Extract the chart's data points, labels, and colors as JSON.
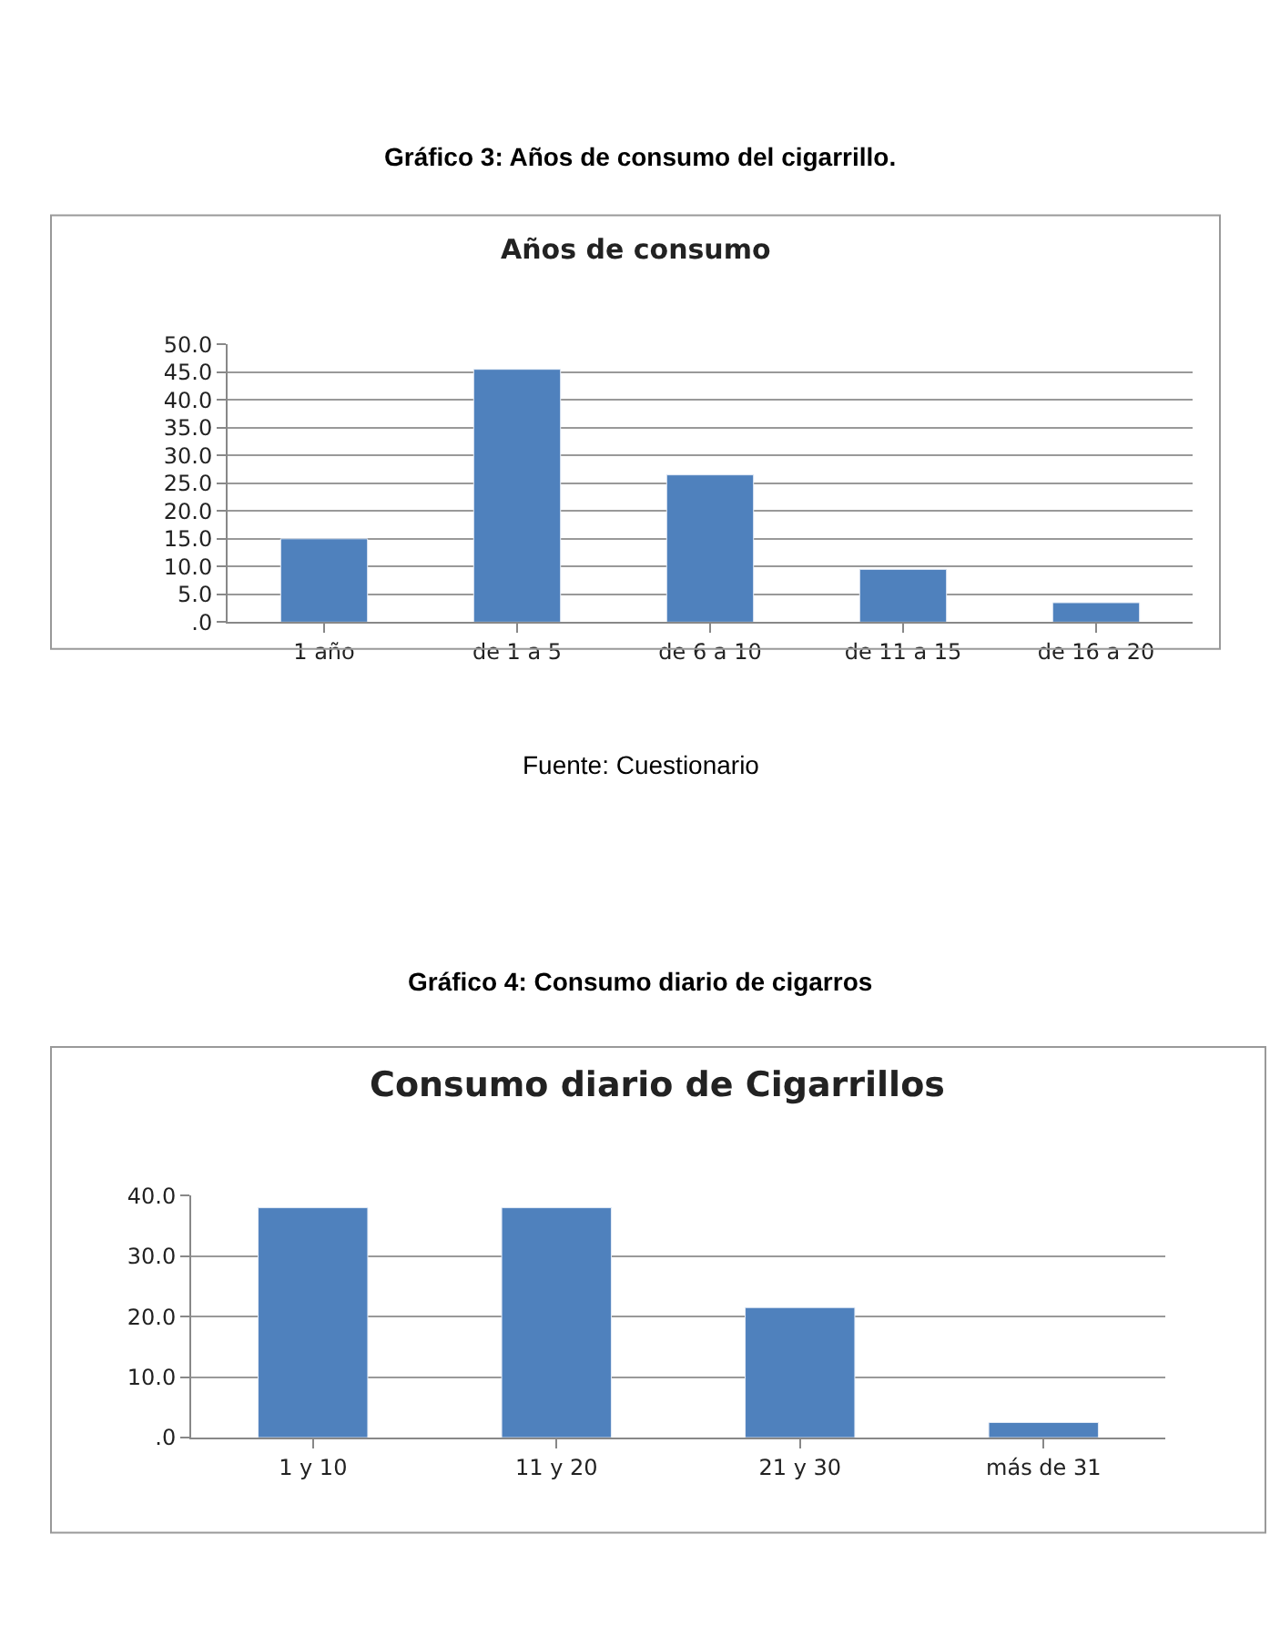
{
  "chart_data": [
    {
      "type": "bar",
      "title": "Años de consumo",
      "annotations": [
        "Gráfico 3: Años de consumo del cigarrillo.",
        "Fuente: Cuestionario"
      ],
      "categories": [
        "1 año",
        "de 1 a 5",
        "de 6 a 10",
        "de 11 a 15",
        "de 16 a 20"
      ],
      "values": [
        15.0,
        45.5,
        26.5,
        9.5,
        3.5
      ],
      "color": "#4f81bd",
      "ylim": [
        0,
        50
      ],
      "yticks": [
        {
          "value": 0,
          "label": ".0"
        },
        {
          "value": 5,
          "label": "5.0"
        },
        {
          "value": 10,
          "label": "10.0"
        },
        {
          "value": 15,
          "label": "15.0"
        },
        {
          "value": 20,
          "label": "20.0"
        },
        {
          "value": 25,
          "label": "25.0"
        },
        {
          "value": 30,
          "label": "30.0"
        },
        {
          "value": 35,
          "label": "35.0"
        },
        {
          "value": 40,
          "label": "40.0"
        },
        {
          "value": 45,
          "label": "45.0"
        },
        {
          "value": 50,
          "label": "50.0"
        }
      ],
      "grid": "y"
    },
    {
      "type": "bar",
      "title": "Consumo diario de Cigarrillos",
      "annotations": [
        "Gráfico 4: Consumo diario de cigarros"
      ],
      "categories": [
        "1 y 10",
        "11 y 20",
        "21 y 30",
        "más de 31"
      ],
      "values": [
        38.0,
        38.0,
        21.5,
        2.5
      ],
      "color": "#4f81bd",
      "ylim": [
        0,
        40
      ],
      "yticks": [
        {
          "value": 0,
          "label": ".0"
        },
        {
          "value": 10,
          "label": "10.0"
        },
        {
          "value": 20,
          "label": "20.0"
        },
        {
          "value": 30,
          "label": "30.0"
        },
        {
          "value": 40,
          "label": "40.0"
        }
      ],
      "grid": "y"
    }
  ]
}
